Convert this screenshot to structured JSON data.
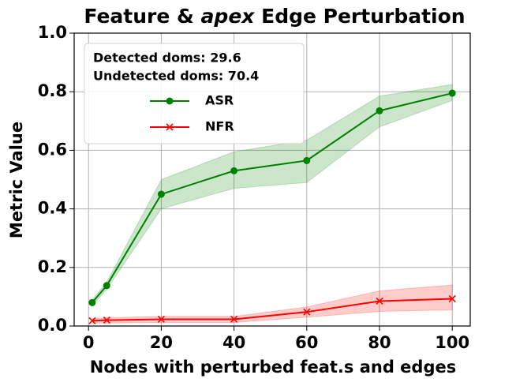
{
  "chart_data": {
    "type": "line",
    "title_parts": [
      "Feature & ",
      "apex",
      " Edge Perturbation"
    ],
    "xlabel": "Nodes with perturbed feat.s and edges",
    "ylabel": "Metric Value",
    "annotations": [
      "Detected doms: 29.6",
      "Undetected doms: 70.4"
    ],
    "x": [
      1,
      5,
      20,
      40,
      60,
      80,
      100
    ],
    "series": [
      {
        "name": "ASR",
        "color": "#008000",
        "marker": "circle",
        "values": [
          0.08,
          0.138,
          0.45,
          0.53,
          0.565,
          0.735,
          0.795
        ],
        "lower": [
          0.07,
          0.125,
          0.4,
          0.47,
          0.49,
          0.68,
          0.77
        ],
        "upper": [
          0.09,
          0.15,
          0.5,
          0.595,
          0.635,
          0.785,
          0.825
        ]
      },
      {
        "name": "NFR",
        "color": "#ff0000",
        "marker": "x",
        "values": [
          0.018,
          0.02,
          0.023,
          0.023,
          0.048,
          0.085,
          0.093
        ],
        "lower": [
          0.01,
          0.01,
          0.012,
          0.012,
          0.03,
          0.05,
          0.055
        ],
        "upper": [
          0.025,
          0.028,
          0.033,
          0.033,
          0.065,
          0.12,
          0.14
        ]
      }
    ],
    "xlim": [
      -3.95,
      104.95
    ],
    "ylim": [
      0,
      1
    ],
    "xticks": [
      0,
      20,
      40,
      60,
      80,
      100
    ],
    "yticks": [
      {
        "value": 0,
        "label": "0.0"
      },
      {
        "value": 0.2,
        "label": "0.2"
      },
      {
        "value": 0.4,
        "label": "0.4"
      },
      {
        "value": 0.6,
        "label": "0.6"
      },
      {
        "value": 0.8,
        "label": "0.8"
      },
      {
        "value": 1,
        "label": "1.0"
      }
    ],
    "grid": true
  }
}
